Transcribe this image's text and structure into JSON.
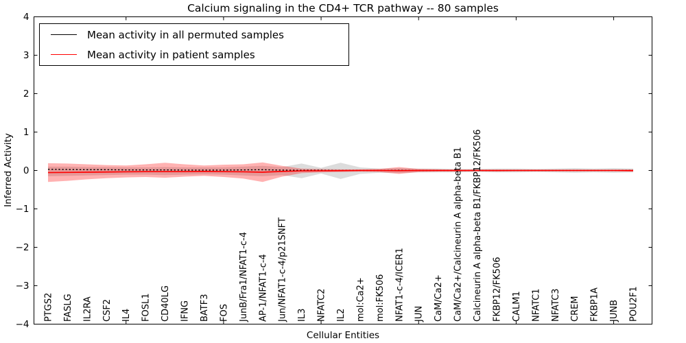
{
  "figure": {
    "title": "Calcium signaling in the CD4+ TCR pathway -- 80 samples",
    "xlabel": "Cellular Entities",
    "ylabel": "Inferred Activity"
  },
  "legend": {
    "items": [
      {
        "label": "Mean activity in all permuted samples",
        "color": "#000000"
      },
      {
        "label": "Mean activity in patient samples",
        "color": "#ff0000"
      }
    ]
  },
  "chart_data": {
    "type": "line",
    "title": "Calcium signaling in the CD4+ TCR pathway -- 80 samples",
    "xlabel": "Cellular Entities",
    "ylabel": "Inferred Activity",
    "ylim": [
      -4,
      4
    ],
    "yticks": [
      4,
      3,
      2,
      1,
      0,
      -1,
      -2,
      -3,
      -4
    ],
    "ytick_labels": [
      "4",
      "3",
      "2",
      "1",
      "0",
      "−1",
      "−2",
      "−3",
      "−4"
    ],
    "grid": false,
    "legend_position": "upper left",
    "categories": [
      "PTGS2",
      "FASLG",
      "IL2RA",
      "CSF2",
      "IL4",
      "FOSL1",
      "CD40LG",
      "IFNG",
      "BATF3",
      "FOS",
      "JunB/Fra1/NFAT1-c-4",
      "AP-1/NFAT1-c-4",
      "Jun/NFAT1-c-4/p21SNFT",
      "IL3",
      "NFATC2",
      "IL2",
      "mol:Ca2+",
      "mol:FK506",
      "NFAT1-c-4/ICER1",
      "JUN",
      "CaM/Ca2+",
      "CaM/Ca2+/Calcineurin A alpha-beta B1",
      "Calcineurin A alpha-beta B1/FKBP12/FK506",
      "FKBP12/FK506",
      "CALM1",
      "NFATC1",
      "NFATC3",
      "CREM",
      "FKBP1A",
      "JUNB",
      "POU2F1"
    ],
    "x_major_tick_indices": [
      4,
      9,
      14,
      19,
      24,
      29
    ],
    "series": [
      {
        "name": "Mean activity in all permuted samples",
        "color": "#000000",
        "linestyle": "dashed",
        "values": [
          0.03,
          0.025,
          0.02,
          0.02,
          0.015,
          0.015,
          0.015,
          0.01,
          0.01,
          0.01,
          0.015,
          0.02,
          0.01,
          0.005,
          0.005,
          0,
          0,
          0,
          0.005,
          0,
          0,
          0,
          0,
          0,
          0,
          0,
          0,
          0,
          0,
          0,
          0
        ]
      },
      {
        "name": "Mean activity in patient samples",
        "color": "#ff0000",
        "linestyle": "solid",
        "values": [
          -0.055,
          -0.05,
          -0.045,
          -0.04,
          -0.035,
          -0.03,
          -0.03,
          -0.03,
          -0.025,
          -0.03,
          -0.035,
          -0.045,
          -0.025,
          -0.01,
          -0.008,
          -0.005,
          0,
          0,
          -0.005,
          0,
          0,
          0,
          0,
          0,
          0,
          0,
          0,
          0,
          0,
          0,
          -0.005
        ]
      }
    ],
    "bands": [
      {
        "name": "permuted-samples-std-band",
        "color": "#8c8c8c",
        "opacity": 0.3,
        "upper": [
          0.1,
          0.1,
          0.09,
          0.09,
          0.08,
          0.08,
          0.09,
          0.08,
          0.08,
          0.08,
          0.1,
          0.12,
          0.09,
          0.18,
          0.07,
          0.2,
          0.08,
          0.05,
          0.06,
          0.05,
          0.05,
          0.04,
          0.04,
          0.05,
          0.05,
          0.04,
          0.05,
          0.06,
          0.05,
          0.06,
          0.05
        ],
        "lower": [
          -0.15,
          -0.14,
          -0.13,
          -0.12,
          -0.11,
          -0.11,
          -0.12,
          -0.11,
          -0.1,
          -0.11,
          -0.13,
          -0.15,
          -0.12,
          -0.2,
          -0.08,
          -0.22,
          -0.09,
          -0.06,
          -0.07,
          -0.05,
          -0.05,
          -0.05,
          -0.04,
          -0.05,
          -0.05,
          -0.04,
          -0.05,
          -0.06,
          -0.05,
          -0.06,
          -0.05
        ]
      },
      {
        "name": "patient-samples-std-band",
        "color": "#ff0000",
        "opacity": 0.3,
        "upper": [
          0.19,
          0.18,
          0.16,
          0.14,
          0.13,
          0.16,
          0.2,
          0.16,
          0.13,
          0.15,
          0.16,
          0.21,
          0.12,
          0.05,
          0.04,
          0.03,
          0.03,
          0.04,
          0.09,
          0.04,
          0.03,
          0.02,
          0.02,
          0.02,
          0.02,
          0.02,
          0.02,
          0.02,
          0.02,
          0.02,
          0.03
        ],
        "lower": [
          -0.3,
          -0.27,
          -0.23,
          -0.2,
          -0.18,
          -0.17,
          -0.19,
          -0.16,
          -0.14,
          -0.17,
          -0.21,
          -0.3,
          -0.16,
          -0.07,
          -0.05,
          -0.04,
          -0.03,
          -0.04,
          -0.09,
          -0.04,
          -0.03,
          -0.03,
          -0.02,
          -0.03,
          -0.02,
          -0.02,
          -0.02,
          -0.02,
          -0.02,
          -0.02,
          -0.03
        ]
      }
    ],
    "colors": {
      "frame": "#000000",
      "background": "#ffffff"
    }
  }
}
